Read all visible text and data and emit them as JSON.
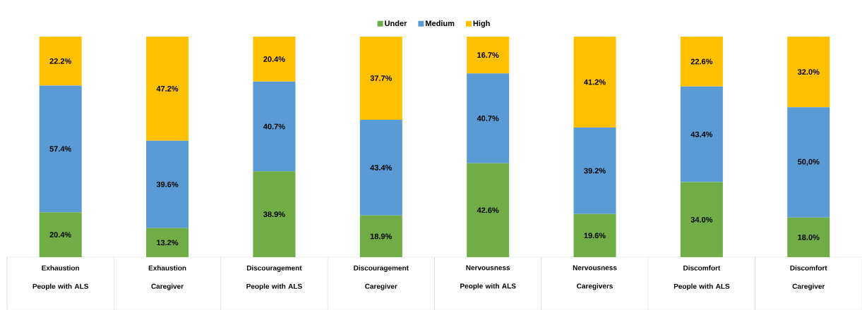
{
  "chart_data": {
    "type": "bar",
    "stacked": true,
    "legend": "top",
    "categories": [
      "Exhaustion People with ALS",
      "Exhaustion Caregiver",
      "Discouragement People with ALS",
      "Discouragement Caregiver",
      "Nervousness People with ALS",
      "Nervousness Caregivers",
      "Discomfort People with ALS",
      "Discomfort Caregiver"
    ],
    "series": [
      {
        "name": "Under",
        "color": "#70ad47",
        "values": [
          20.4,
          13.2,
          38.9,
          18.9,
          42.6,
          19.6,
          34.0,
          18.0
        ],
        "value_labels": [
          "20.4%",
          "13.2%",
          "38.9%",
          "18.9%",
          "42.6%",
          "19.6%",
          "34.0%",
          "18.0%"
        ]
      },
      {
        "name": "Medium",
        "color": "#5b9bd5",
        "values": [
          57.4,
          39.6,
          40.7,
          43.4,
          40.7,
          39.2,
          43.4,
          50.0
        ],
        "value_labels": [
          "57.4%",
          "39.6%",
          "40.7%",
          "43.4%",
          "40.7%",
          "39.2%",
          "43.4%",
          "50,0%"
        ]
      },
      {
        "name": "High",
        "color": "#ffc000",
        "values": [
          22.2,
          47.2,
          20.4,
          37.7,
          16.7,
          41.2,
          22.6,
          32.0
        ],
        "value_labels": [
          "22.2%",
          "47.2%",
          "20.4%",
          "37.7%",
          "16.7%",
          "41.2%",
          "22.6%",
          "32.0%"
        ]
      }
    ]
  }
}
